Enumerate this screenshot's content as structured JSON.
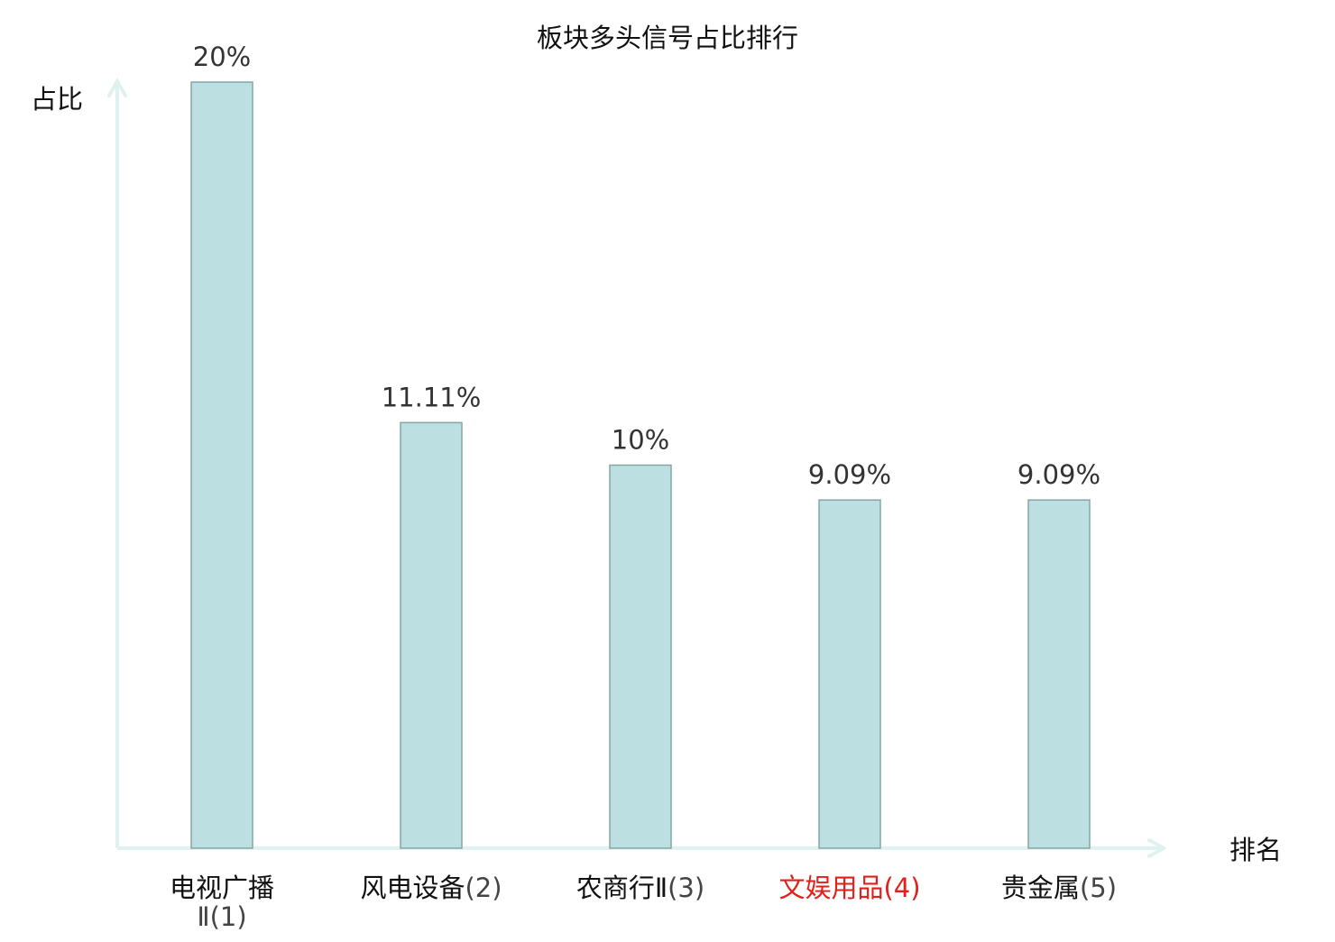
{
  "chart_data": {
    "type": "bar",
    "title": "板块多头信号占比排行",
    "ylabel": "占比",
    "xlabel": "排名",
    "categories": [
      {
        "name": "电视广播Ⅱ",
        "rank": "(1)",
        "highlight": false
      },
      {
        "name": "风电设备",
        "rank": "(2)",
        "highlight": false
      },
      {
        "name": "农商行Ⅱ",
        "rank": "(3)",
        "highlight": false
      },
      {
        "name": "文娱用品",
        "rank": "(4)",
        "highlight": true
      },
      {
        "name": "贵金属",
        "rank": "(5)",
        "highlight": false
      }
    ],
    "values": [
      20,
      11.11,
      10,
      9.09,
      9.09
    ],
    "value_labels": [
      "20%",
      "11.11%",
      "10%",
      "9.09%",
      "9.09%"
    ],
    "ylim": [
      0,
      20
    ],
    "grid": false,
    "legend": "none"
  },
  "colors": {
    "bar_fill": "#bce0e1",
    "bar_stroke": "#87a5a6",
    "axis": "#dff2ef",
    "text": "#111111",
    "value_text": "#333333",
    "rank_text": "#444444",
    "highlight": "#e0201b"
  }
}
